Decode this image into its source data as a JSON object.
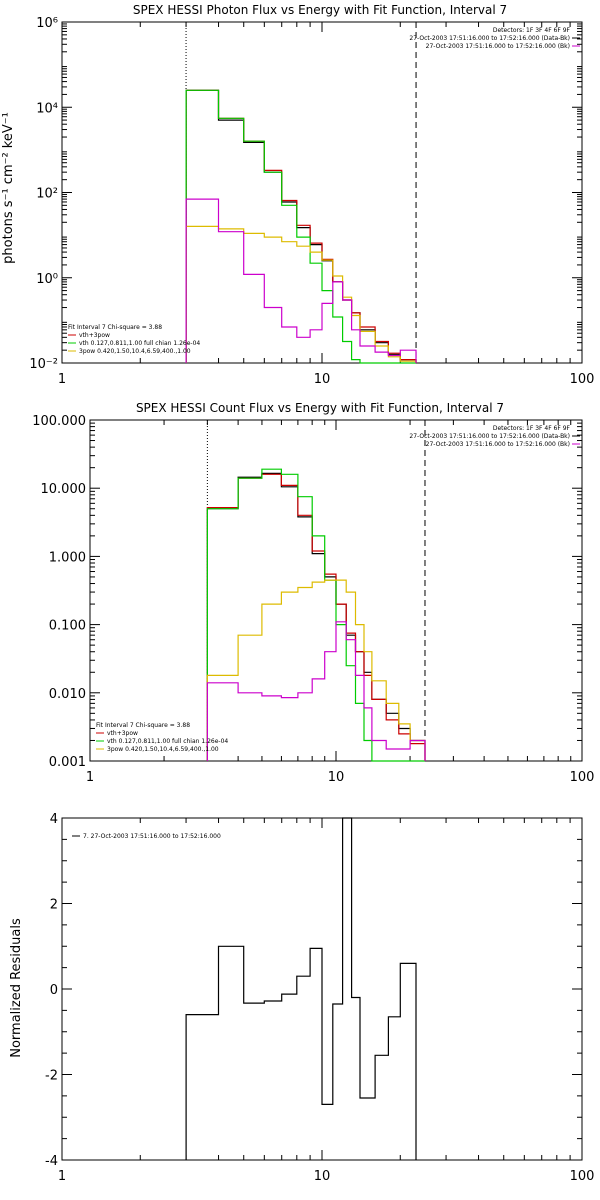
{
  "chart_data": [
    {
      "type": "line",
      "title": "SPEX HESSI Photon Flux vs Energy with Fit Function, Interval 7",
      "xlabel": "",
      "ylabel": "photons s⁻¹ cm⁻² keV⁻¹",
      "xscale": "log",
      "yscale": "log",
      "xlim": [
        1,
        100
      ],
      "ylim": [
        0.01,
        1000000
      ],
      "x_ticks": [
        1,
        10,
        100
      ],
      "x_tick_labels": [
        "1",
        "10",
        "100"
      ],
      "y_ticks": [
        0.01,
        1,
        100,
        10000,
        1000000
      ],
      "y_tick_labels": [
        "10⁻²",
        "10⁰",
        "10²",
        "10⁴",
        "10⁶"
      ],
      "vlines": [
        {
          "x": 3,
          "style": "dotted"
        },
        {
          "x": 23,
          "style": "dashed"
        }
      ],
      "legend_top": {
        "header": "Detectors: 1F 3F 4F 6F 9F",
        "entries": [
          {
            "label": "27-Oct-2003 17:51:16.000 to 17:52:16.000 (Data-Bk)",
            "color": "#000000"
          },
          {
            "label": "27-Oct-2003 17:51:16.000 to 17:52:16.000 (Bk)",
            "color": "#cc00cc"
          }
        ]
      },
      "legend_bottom": {
        "header": "Fit Interval  7    Chi-square = 3.88",
        "entries": [
          {
            "label": "vth+3pow",
            "color": "#cc0000"
          },
          {
            "label": "vth 0.127,0.811,1.00  full chian 1.26e-04",
            "color": "#00cc00"
          },
          {
            "label": "3pow 0.420,1.50,10.4,6.59,400.,1.00",
            "color": "#ddbb00"
          }
        ]
      },
      "edges": [
        3,
        4,
        5,
        6,
        7,
        8,
        9,
        10,
        11,
        12,
        13,
        14,
        16,
        18,
        20,
        23
      ],
      "series": [
        {
          "name": "Data-Bk",
          "color": "#000000",
          "values": [
            25000,
            5000,
            1500,
            300,
            60,
            15,
            6,
            2.5,
            0.8,
            0.3,
            0.15,
            0.06,
            0.03,
            0.016,
            0.012
          ]
        },
        {
          "name": "vth+3pow",
          "color": "#cc0000",
          "values": [
            25000,
            5500,
            1600,
            330,
            65,
            17,
            6.5,
            2.7,
            0.8,
            0.3,
            0.15,
            0.07,
            0.032,
            0.017,
            0.012
          ]
        },
        {
          "name": "vth",
          "color": "#00cc00",
          "values": [
            25000,
            5500,
            1600,
            300,
            50,
            9,
            2.2,
            0.5,
            0.12,
            0.032,
            0.012,
            0.01,
            0.01,
            0.01,
            0.01
          ]
        },
        {
          "name": "3pow",
          "color": "#ddbb00",
          "values": [
            16,
            14,
            11,
            9,
            7,
            5.5,
            4,
            2.6,
            1.1,
            0.35,
            0.13,
            0.055,
            0.025,
            0.014,
            0.011
          ]
        },
        {
          "name": "Bk",
          "color": "#cc00cc",
          "values": [
            70,
            12,
            1.2,
            0.2,
            0.07,
            0.04,
            0.06,
            0.25,
            0.8,
            0.3,
            0.06,
            0.025,
            0.018,
            0.015,
            0.02
          ]
        }
      ]
    },
    {
      "type": "line",
      "title": "SPEX HESSI Count Flux vs Energy with Fit Function, Interval 7",
      "xlabel": "",
      "ylabel": "",
      "xscale": "log",
      "yscale": "log",
      "xlim": [
        1,
        100
      ],
      "ylim": [
        0.001,
        100
      ],
      "x_ticks": [
        1,
        10,
        100
      ],
      "x_tick_labels": [
        "1",
        "10",
        "100"
      ],
      "y_ticks": [
        0.001,
        0.01,
        0.1,
        1,
        10,
        100
      ],
      "y_tick_labels": [
        "0.001",
        "0.010",
        "0.100",
        "1.000",
        "10.000",
        "100.000"
      ],
      "vlines": [
        {
          "x": 3,
          "style": "dotted"
        },
        {
          "x": 23,
          "style": "dashed"
        }
      ],
      "legend_top": {
        "header": "Detectors: 1F 3F 4F 6F 9F",
        "entries": [
          {
            "label": "27-Oct-2003 17:51:16.000 to 17:52:16.000 (Data-Bk)",
            "color": "#000000"
          },
          {
            "label": "27-Oct-2003 17:51:16.000 to 17:52:16.000 (Bk)",
            "color": "#cc00cc"
          }
        ]
      },
      "legend_bottom": {
        "header": "Fit Interval  7    Chi-square = 3.88",
        "entries": [
          {
            "label": "vth+3pow",
            "color": "#cc0000"
          },
          {
            "label": "vth 0.127,0.811,1.00  full chian 1.26e-04",
            "color": "#00cc00"
          },
          {
            "label": "3pow 0.420,1.50,10.4,6.59,400.,1.00",
            "color": "#ddbb00"
          }
        ]
      },
      "edges": [
        3,
        4,
        5,
        6,
        7,
        8,
        9,
        10,
        11,
        12,
        13,
        14,
        16,
        18,
        20,
        23
      ],
      "series": [
        {
          "name": "Data-Bk",
          "color": "#000000",
          "values": [
            5.0,
            14.5,
            16.5,
            10.5,
            3.8,
            1.1,
            0.5,
            0.2,
            0.07,
            0.04,
            0.02,
            0.008,
            0.005,
            0.003,
            0.002
          ]
        },
        {
          "name": "vth+3pow",
          "color": "#cc0000",
          "values": [
            5.2,
            14.0,
            16.0,
            11.0,
            4.0,
            1.2,
            0.55,
            0.2,
            0.075,
            0.04,
            0.018,
            0.008,
            0.004,
            0.0025,
            0.0018
          ]
        },
        {
          "name": "vth",
          "color": "#00cc00",
          "values": [
            5.0,
            14.0,
            19.0,
            16.0,
            7.5,
            2.0,
            0.45,
            0.1,
            0.025,
            0.007,
            0.002,
            0.001,
            0.001,
            0.001,
            0.001
          ]
        },
        {
          "name": "3pow",
          "color": "#ddbb00",
          "values": [
            0.018,
            0.07,
            0.2,
            0.3,
            0.35,
            0.42,
            0.45,
            0.45,
            0.3,
            0.1,
            0.04,
            0.015,
            0.007,
            0.0035,
            0.002
          ]
        },
        {
          "name": "Bk",
          "color": "#cc00cc",
          "values": [
            0.014,
            0.01,
            0.009,
            0.0085,
            0.01,
            0.016,
            0.04,
            0.11,
            0.06,
            0.018,
            0.006,
            0.002,
            0.0015,
            0.0015,
            0.002
          ]
        }
      ]
    },
    {
      "type": "line",
      "title": "",
      "xlabel": "",
      "ylabel": "Normalized Residuals",
      "xscale": "log",
      "yscale": "linear",
      "xlim": [
        1,
        100
      ],
      "ylim": [
        -4,
        4
      ],
      "x_ticks": [
        1,
        10,
        100
      ],
      "x_tick_labels": [
        "1",
        "10",
        "100"
      ],
      "y_ticks": [
        -4,
        -2,
        0,
        2,
        4
      ],
      "y_tick_labels": [
        "-4",
        "-2",
        "0",
        "2",
        "4"
      ],
      "legend_top": {
        "header": "",
        "entries": [
          {
            "label": "7. 27-Oct-2003 17:51:16.000 to 17:52:16.000",
            "color": "#000000"
          }
        ]
      },
      "edges": [
        3,
        4,
        5,
        6,
        7,
        8,
        9,
        10,
        11,
        12,
        13,
        14,
        16,
        18,
        20,
        23
      ],
      "series": [
        {
          "name": "Residuals",
          "color": "#000000",
          "values": [
            -0.6,
            1.0,
            -0.33,
            -0.28,
            -0.12,
            0.3,
            0.95,
            -2.7,
            -0.35,
            4.0,
            -0.2,
            -2.55,
            -1.55,
            -0.65,
            0.6
          ]
        }
      ]
    }
  ]
}
